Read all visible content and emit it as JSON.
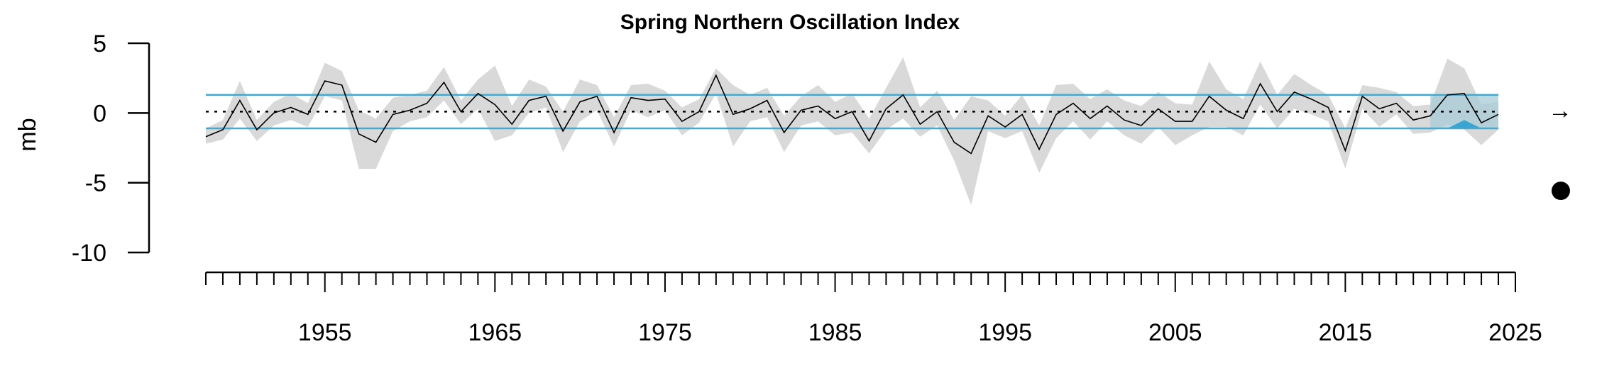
{
  "chart_data": {
    "type": "line",
    "title": "Spring Northern Oscillation Index",
    "ylabel": "mb",
    "xlabel": "",
    "ylim": [
      -10,
      5
    ],
    "yticks": [
      5,
      0,
      -5,
      -10
    ],
    "xlim": [
      1948,
      2025
    ],
    "xticks_labeled": [
      1955,
      1965,
      1975,
      1985,
      1995,
      2005,
      2015,
      2025
    ],
    "x": [
      1948,
      1949,
      1950,
      1951,
      1952,
      1953,
      1954,
      1955,
      1956,
      1957,
      1958,
      1959,
      1960,
      1961,
      1962,
      1963,
      1964,
      1965,
      1966,
      1967,
      1968,
      1969,
      1970,
      1971,
      1972,
      1973,
      1974,
      1975,
      1976,
      1977,
      1978,
      1979,
      1980,
      1981,
      1982,
      1983,
      1984,
      1985,
      1986,
      1987,
      1988,
      1989,
      1990,
      1991,
      1992,
      1993,
      1994,
      1995,
      1996,
      1997,
      1998,
      1999,
      2000,
      2001,
      2002,
      2003,
      2004,
      2005,
      2006,
      2007,
      2008,
      2009,
      2010,
      2011,
      2012,
      2013,
      2014,
      2015,
      2016,
      2017,
      2018,
      2019,
      2020,
      2021,
      2022,
      2023,
      2024
    ],
    "series": [
      {
        "values": [
          -1.7,
          -1.2,
          0.9,
          -1.2,
          0.0,
          0.4,
          -0.1,
          2.3,
          2.0,
          -1.5,
          -2.1,
          -0.1,
          0.2,
          0.7,
          2.2,
          0.1,
          1.4,
          0.6,
          -0.8,
          0.9,
          1.2,
          -1.3,
          0.8,
          1.2,
          -1.4,
          1.1,
          0.9,
          1.0,
          -0.6,
          0.1,
          2.7,
          -0.1,
          0.3,
          0.9,
          -1.4,
          0.2,
          0.5,
          -0.4,
          0.1,
          -2.0,
          0.3,
          1.3,
          -0.8,
          0.1,
          -2.1,
          -2.9,
          -0.2,
          -1.0,
          -0.1,
          -2.6,
          -0.1,
          0.7,
          -0.4,
          0.5,
          -0.5,
          -0.9,
          0.3,
          -0.6,
          -0.6,
          1.2,
          0.2,
          -0.4,
          2.1,
          0.1,
          1.5,
          1.0,
          0.4,
          -2.7,
          1.2,
          0.3,
          0.7,
          -0.5,
          -0.2,
          1.3,
          1.4,
          -0.7,
          -0.1
        ],
        "upper": [
          -1.1,
          -0.5,
          2.3,
          -0.5,
          0.8,
          1.4,
          0.7,
          3.6,
          3.0,
          0.2,
          -0.4,
          1.1,
          1.3,
          1.6,
          3.3,
          0.9,
          2.4,
          3.4,
          0.5,
          2.4,
          1.9,
          0.1,
          2.4,
          2.0,
          -0.3,
          2.0,
          2.1,
          1.6,
          0.4,
          1.0,
          3.2,
          2.0,
          1.3,
          1.8,
          -0.2,
          1.2,
          2.0,
          0.8,
          1.4,
          -0.4,
          1.8,
          4.0,
          0.4,
          1.6,
          -0.5,
          1.2,
          0.9,
          -0.2,
          1.3,
          -0.9,
          2.0,
          2.1,
          1.0,
          1.7,
          0.9,
          0.5,
          1.5,
          0.7,
          0.6,
          3.7,
          1.7,
          1.0,
          3.7,
          1.3,
          2.8,
          2.0,
          1.3,
          -1.1,
          2.0,
          1.8,
          1.5,
          0.5,
          0.6,
          3.9,
          3.2,
          0.6,
          0.8
        ],
        "lower": [
          -2.2,
          -1.9,
          -0.4,
          -2.0,
          -0.9,
          -0.5,
          -1.0,
          1.2,
          0.9,
          -4.0,
          -4.0,
          -1.3,
          -0.6,
          -0.3,
          0.9,
          -0.8,
          0.3,
          -2.0,
          -1.6,
          0.0,
          0.4,
          -2.8,
          -0.6,
          0.2,
          -2.4,
          0.2,
          -0.3,
          0.2,
          -1.6,
          -0.7,
          1.4,
          -2.4,
          -0.6,
          -0.3,
          -2.8,
          -0.9,
          -0.6,
          -1.6,
          -1.4,
          -2.9,
          -1.2,
          -0.4,
          -1.7,
          -0.9,
          -3.4,
          -6.6,
          -1.3,
          -1.8,
          -1.3,
          -4.3,
          -1.8,
          -0.6,
          -1.9,
          -0.6,
          -1.6,
          -2.2,
          -1.0,
          -2.3,
          -1.6,
          -1.0,
          -1.0,
          -1.6,
          0.6,
          -1.1,
          0.3,
          -0.1,
          -0.6,
          -4.0,
          0.3,
          -1.0,
          -0.1,
          -1.5,
          -1.4,
          -0.8,
          -1.2,
          -2.3,
          -1.2
        ]
      }
    ],
    "mean": 0.1,
    "sd_upper": 1.3,
    "sd_lower": -1.1,
    "recent_window": [
      2020,
      2024
    ],
    "trend_symbol": "→",
    "status_symbol": "●",
    "colors": {
      "line": "#000000",
      "ribbon": "#d9d9d9",
      "sd_lines": "#45a9d0",
      "recent_window": "#a8cbd8",
      "highlight_fill": "#3aa4d2",
      "mean_line": "#000000"
    },
    "grid": false,
    "legend": "none"
  }
}
